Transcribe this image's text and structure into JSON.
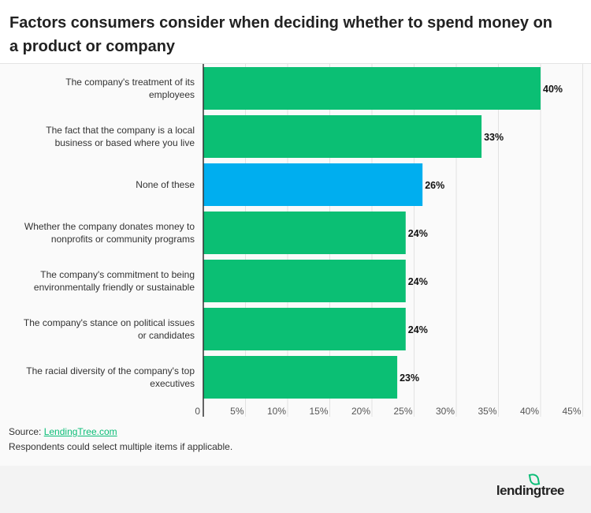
{
  "chart_data": {
    "type": "bar",
    "orientation": "horizontal",
    "title": "Factors consumers consider when deciding whether to spend money on a product or company",
    "categories": [
      [
        "The company's treatment of its",
        "employees"
      ],
      [
        "The fact that the company is a local",
        "business or based where you live"
      ],
      [
        "None of these"
      ],
      [
        "Whether the company donates money to",
        "nonprofits or community programs"
      ],
      [
        "The company's commitment to being",
        "environmentally friendly or sustainable"
      ],
      [
        "The company's stance on political issues",
        "or candidates"
      ],
      [
        "The racial diversity of the company's top",
        "executives"
      ]
    ],
    "values": [
      40,
      33,
      26,
      24,
      24,
      24,
      23
    ],
    "data_labels": [
      "40%",
      "33%",
      "26%",
      "24%",
      "24%",
      "24%",
      "23%"
    ],
    "bar_colors": [
      "#0bbf74",
      "#0bbf74",
      "#00aeef",
      "#0bbf74",
      "#0bbf74",
      "#0bbf74",
      "#0bbf74"
    ],
    "xlim": [
      0,
      45
    ],
    "x_ticks": [
      "0",
      "5%",
      "10%",
      "15%",
      "20%",
      "25%",
      "30%",
      "35%",
      "40%",
      "45%"
    ],
    "grid": true
  },
  "footer": {
    "source_label": "Source:",
    "source_link": "LendingTree.com",
    "note": "Respondents could select multiple items if applicable.",
    "logo": "lendingtree"
  }
}
